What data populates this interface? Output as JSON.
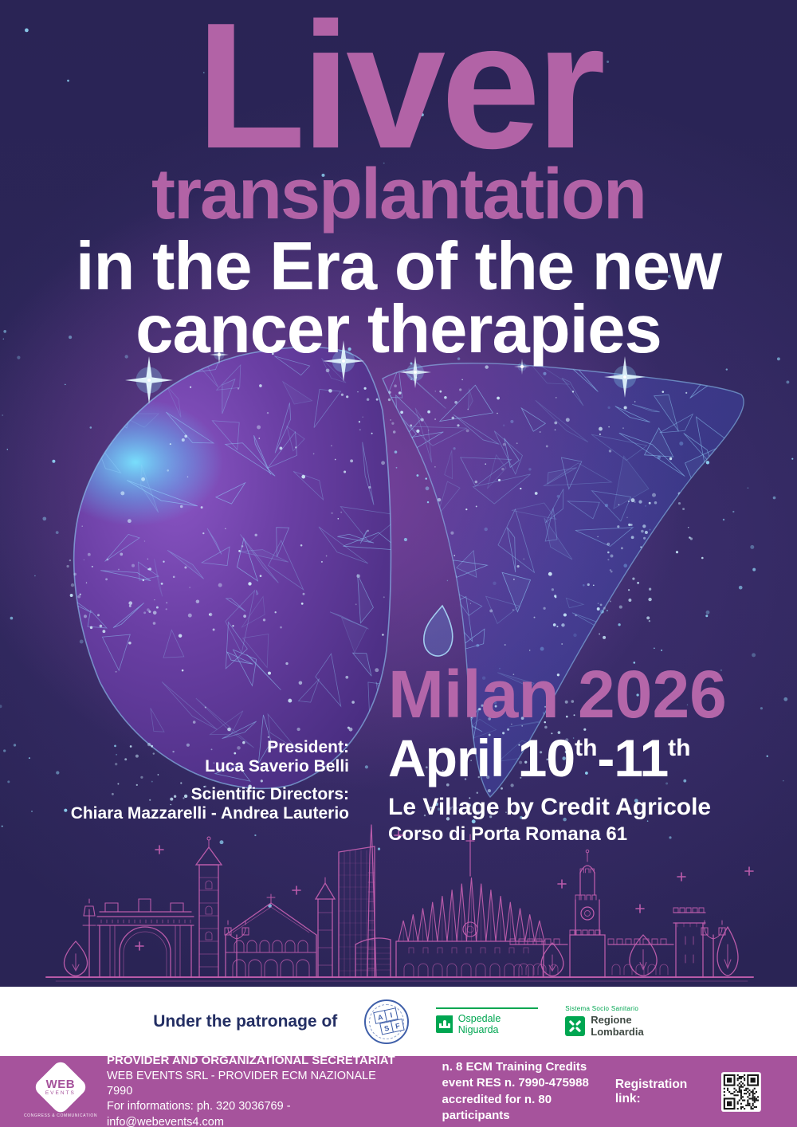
{
  "title": {
    "line1": "Liver",
    "line2": "transplantation",
    "line3": "in the Era of the new",
    "line4": "cancer therapies"
  },
  "people": {
    "president_label": "President:",
    "president_name": "Luca Saverio Belli",
    "directors_label": "Scientific Directors:",
    "directors_names": "Chiara Mazzarelli - Andrea Lauterio"
  },
  "event": {
    "city_year": "Milan 2026",
    "date_main_1": "April 10",
    "date_sup_1": "th",
    "date_main_2": "-11",
    "date_sup_2": "th",
    "venue": "Le Village by Credit Agricole",
    "address": "Corso di Porta Romana 61"
  },
  "patronage": {
    "label": "Under the patronage of",
    "aisf": {
      "letters": [
        "A",
        "I",
        "S",
        "F"
      ]
    },
    "niguarda": {
      "name": "Ospedale Niguarda"
    },
    "lombardia": {
      "system": "Sistema Socio Sanitario",
      "name_line1": "Regione",
      "name_line2": "Lombardia"
    }
  },
  "footer": {
    "logo": {
      "line1": "WEB",
      "line2": "EVENTS",
      "tagline": "CONGRESS & COMMUNICATION"
    },
    "provider": {
      "heading": "PROVIDER AND ORGANIZATIONAL SECRETARIAT",
      "line1": "WEB EVENTS SRL - PROVIDER ECM NAZIONALE 7990",
      "line2": "For informations: ph. 320 3036769 - info@webevents4.com"
    },
    "ecm": {
      "line1": "n. 8 ECM Training Credits",
      "line2": "event RES n. 7990-475988",
      "line3": "accredited for n. 80 participants"
    },
    "registration_label": "Registration link:",
    "qr_icon": "qr-code"
  },
  "colors": {
    "background_navy": "#2b2558",
    "accent_pink": "#b263a6",
    "headline_white": "#ffffff",
    "skyline_pink": "#c45fb0",
    "wireframe_blue": "#96d7ff",
    "footer_magenta": "#a6539c",
    "patronage_navy": "#232e63",
    "logo_green": "#00a651",
    "aisf_blue": "#3f5fa9"
  }
}
